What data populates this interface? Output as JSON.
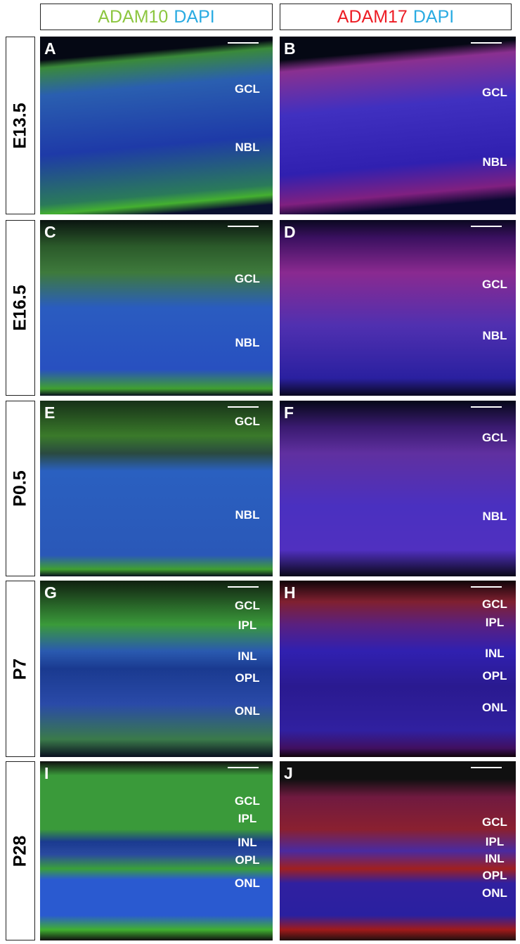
{
  "headers": [
    {
      "parts": [
        {
          "text": "ADAM10",
          "color": "#8cc63f"
        },
        {
          "text": "DAPI",
          "color": "#29abe2"
        }
      ]
    },
    {
      "parts": [
        {
          "text": "ADAM17",
          "color": "#ed1c24"
        },
        {
          "text": "DAPI",
          "color": "#29abe2"
        }
      ]
    }
  ],
  "rows": [
    {
      "label": "E13.5",
      "panels": [
        {
          "letter": "A",
          "layers": [
            "GCL",
            "NBL"
          ]
        },
        {
          "letter": "B",
          "layers": [
            "GCL",
            "NBL"
          ]
        }
      ]
    },
    {
      "label": "E16.5",
      "panels": [
        {
          "letter": "C",
          "layers": [
            "GCL",
            "NBL"
          ]
        },
        {
          "letter": "D",
          "layers": [
            "GCL",
            "NBL"
          ]
        }
      ]
    },
    {
      "label": "P0.5",
      "panels": [
        {
          "letter": "E",
          "layers": [
            "GCL",
            "NBL"
          ]
        },
        {
          "letter": "F",
          "layers": [
            "GCL",
            "NBL"
          ]
        }
      ]
    },
    {
      "label": "P7",
      "panels": [
        {
          "letter": "G",
          "layers": [
            "GCL",
            "IPL",
            "INL",
            "OPL",
            "ONL"
          ]
        },
        {
          "letter": "H",
          "layers": [
            "GCL",
            "IPL",
            "INL",
            "OPL",
            "ONL"
          ]
        }
      ]
    },
    {
      "label": "P28",
      "panels": [
        {
          "letter": "I",
          "layers": [
            "GCL",
            "IPL",
            "INL",
            "OPL",
            "ONL"
          ]
        },
        {
          "letter": "J",
          "layers": [
            "GCL",
            "IPL",
            "INL",
            "OPL",
            "ONL"
          ]
        }
      ]
    }
  ]
}
